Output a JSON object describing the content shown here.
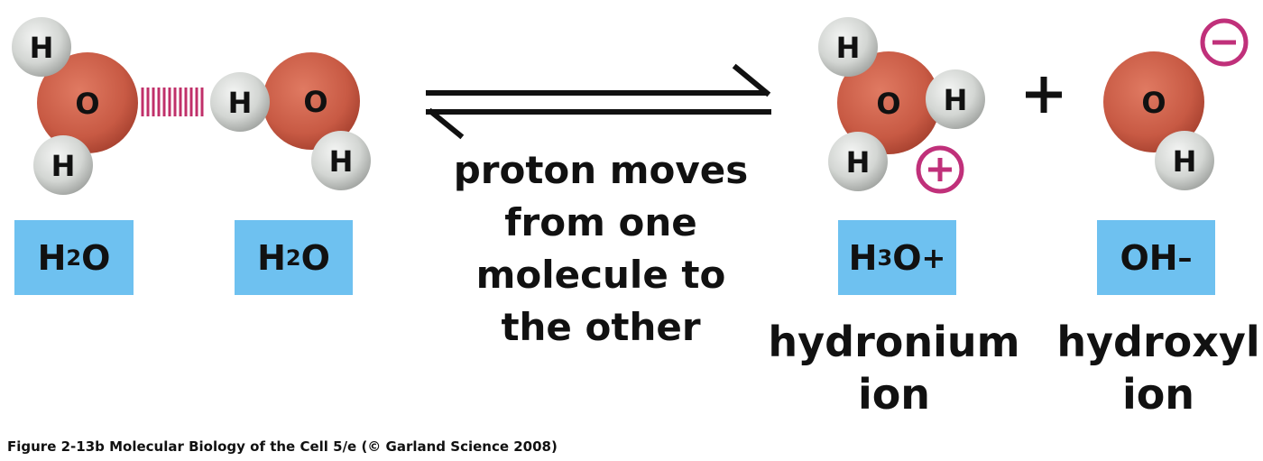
{
  "figure": {
    "colors": {
      "oxygen": "#c85a44",
      "hydrogen": "#c9ccc9",
      "bond": "#c0306a",
      "charge": "#c0307a",
      "formula_box": "#6ec1f0"
    },
    "atoms": {
      "oxygen": "O",
      "hydrogen": "H"
    },
    "reactants": [
      {
        "formula": {
          "base": "H",
          "sub": "2",
          "rest": "O"
        }
      },
      {
        "formula": {
          "base": "H",
          "sub": "2",
          "rest": "O"
        }
      }
    ],
    "products": [
      {
        "formula": {
          "base": "H",
          "sub": "3",
          "rest": "O",
          "sup": "+"
        },
        "name_line1": "hydronium",
        "name_line2": "ion"
      },
      {
        "formula": {
          "base": "OH",
          "sup": "–"
        },
        "name_line1": "hydroxyl",
        "name_line2": "ion"
      }
    ],
    "plus_sign": "+",
    "charges": {
      "positive": "+",
      "negative": "−"
    },
    "arrow_label": [
      "proton moves",
      "from one",
      "molecule to",
      "the other"
    ],
    "caption": "Figure 2-13b  Molecular Biology of the Cell 5/e (© Garland Science 2008)"
  }
}
